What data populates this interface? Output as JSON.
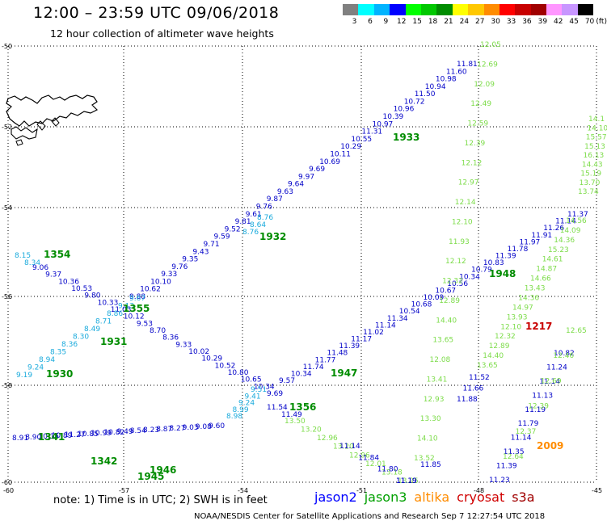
{
  "header": {
    "title": "12:00 – 23:59 UTC 09/06/2018",
    "subtitle": "12 hour collection of altimeter wave heights"
  },
  "legend": {
    "unit": "(ft)",
    "colors": [
      "#808080",
      "#00ffff",
      "#00b4ff",
      "#0000ff",
      "#00ff00",
      "#00c800",
      "#008c00",
      "#ffff00",
      "#ffc800",
      "#ff8c00",
      "#ff0000",
      "#c80000",
      "#a00000",
      "#ff96ff",
      "#c896ff",
      "#000000"
    ],
    "labels": [
      "3",
      "6",
      "9",
      "12",
      "15",
      "18",
      "21",
      "24",
      "27",
      "30",
      "33",
      "36",
      "39",
      "42",
      "45",
      "70"
    ]
  },
  "map": {
    "lat_ticks": [
      "-50",
      "-52",
      "-54",
      "-56",
      "-58",
      "-60"
    ],
    "lon_ticks": [
      "-60",
      "-57",
      "-54",
      "-51",
      "-48",
      "-45"
    ],
    "satellite_colors": {
      "jason2": "#0000c8",
      "jason3": "#008c00",
      "altika": "#ff8c00",
      "cryosat": "#c80000",
      "s3a": "#c80000",
      "light_green": "#7ddc4a",
      "cyan": "#19aadc"
    },
    "time_labels": [
      {
        "text": "1354",
        "color": "jason3"
      },
      {
        "text": "1355",
        "color": "jason3"
      },
      {
        "text": "1931",
        "color": "jason3"
      },
      {
        "text": "1930",
        "color": "jason3"
      },
      {
        "text": "1932",
        "color": "jason3"
      },
      {
        "text": "1933",
        "color": "jason3"
      },
      {
        "text": "1948",
        "color": "jason3"
      },
      {
        "text": "1947",
        "color": "jason3"
      },
      {
        "text": "1356",
        "color": "jason3"
      },
      {
        "text": "1341",
        "color": "jason3"
      },
      {
        "text": "1342",
        "color": "jason3"
      },
      {
        "text": "1946",
        "color": "jason3"
      },
      {
        "text": "1945",
        "color": "jason3"
      },
      {
        "text": "1217",
        "color": "cryosat"
      },
      {
        "text": "2009",
        "color": "altika"
      }
    ]
  },
  "footer": {
    "note": "note:  1) Time is in UTC;  2) SWH is in feet",
    "satellites": [
      {
        "name": "jason2",
        "color": "#0000ff"
      },
      {
        "name": "jason3",
        "color": "#00a000"
      },
      {
        "name": "altika",
        "color": "#ff8c00"
      },
      {
        "name": "cryosat",
        "color": "#d00000"
      },
      {
        "name": "s3a",
        "color": "#a00000"
      }
    ],
    "credit": "NOAA/NESDIS Center for Satellite Applications and Research    Sep  7 12:27:54 UTC 2018"
  }
}
